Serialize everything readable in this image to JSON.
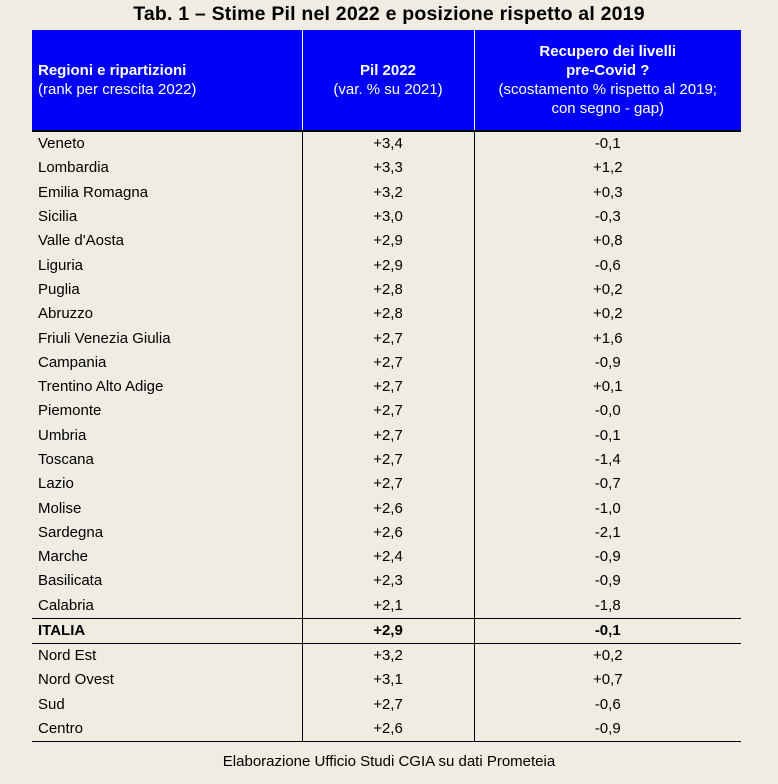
{
  "title": "Tab. 1 – Stime Pil nel 2022 e posizione rispetto al 2019",
  "columns": [
    {
      "bold": "Regioni e ripartizioni",
      "normal": [
        "(rank per crescita 2022)"
      ]
    },
    {
      "bold": "Pil 2022",
      "normal": [
        "(var. % su 2021)"
      ]
    },
    {
      "bold": "Recupero dei livelli\npre-Covid ?",
      "bold_lines": [
        "Recupero dei livelli",
        "pre-Covid ?"
      ],
      "normal": [
        "(scostamento % rispetto al 2019;",
        "con segno - gap)"
      ]
    }
  ],
  "regions": [
    {
      "name": "Veneto",
      "pil": "+3,4",
      "gap": "-0,1"
    },
    {
      "name": "Lombardia",
      "pil": "+3,3",
      "gap": "+1,2"
    },
    {
      "name": "Emilia Romagna",
      "pil": "+3,2",
      "gap": "+0,3"
    },
    {
      "name": "Sicilia",
      "pil": "+3,0",
      "gap": "-0,3"
    },
    {
      "name": "Valle d'Aosta",
      "pil": "+2,9",
      "gap": "+0,8"
    },
    {
      "name": "Liguria",
      "pil": "+2,9",
      "gap": "-0,6"
    },
    {
      "name": "Puglia",
      "pil": "+2,8",
      "gap": "+0,2"
    },
    {
      "name": "Abruzzo",
      "pil": "+2,8",
      "gap": "+0,2"
    },
    {
      "name": "Friuli Venezia Giulia",
      "pil": "+2,7",
      "gap": "+1,6"
    },
    {
      "name": "Campania",
      "pil": "+2,7",
      "gap": "-0,9"
    },
    {
      "name": "Trentino Alto Adige",
      "pil": "+2,7",
      "gap": "+0,1"
    },
    {
      "name": "Piemonte",
      "pil": "+2,7",
      "gap": "-0,0"
    },
    {
      "name": "Umbria",
      "pil": "+2,7",
      "gap": "-0,1"
    },
    {
      "name": "Toscana",
      "pil": "+2,7",
      "gap": "-1,4"
    },
    {
      "name": "Lazio",
      "pil": "+2,7",
      "gap": "-0,7"
    },
    {
      "name": "Molise",
      "pil": "+2,6",
      "gap": "-1,0"
    },
    {
      "name": "Sardegna",
      "pil": "+2,6",
      "gap": "-2,1"
    },
    {
      "name": "Marche",
      "pil": "+2,4",
      "gap": "-0,9"
    },
    {
      "name": "Basilicata",
      "pil": "+2,3",
      "gap": "-0,9"
    },
    {
      "name": "Calabria",
      "pil": "+2,1",
      "gap": "-1,8"
    }
  ],
  "total": {
    "name": "ITALIA",
    "pil": "+2,9",
    "gap": "-0,1"
  },
  "areas": [
    {
      "name": "Nord Est",
      "pil": "+3,2",
      "gap": "+0,2"
    },
    {
      "name": "Nord Ovest",
      "pil": "+3,1",
      "gap": "+0,7"
    },
    {
      "name": "Sud",
      "pil": "+2,7",
      "gap": "-0,6"
    },
    {
      "name": "Centro",
      "pil": "+2,6",
      "gap": "-0,9"
    }
  ],
  "footer": "Elaborazione Ufficio Studi CGIA su dati Prometeia",
  "colors": {
    "header_bg": "#0000f6",
    "header_text": "#ffffff",
    "page_bg": "#efece2"
  }
}
